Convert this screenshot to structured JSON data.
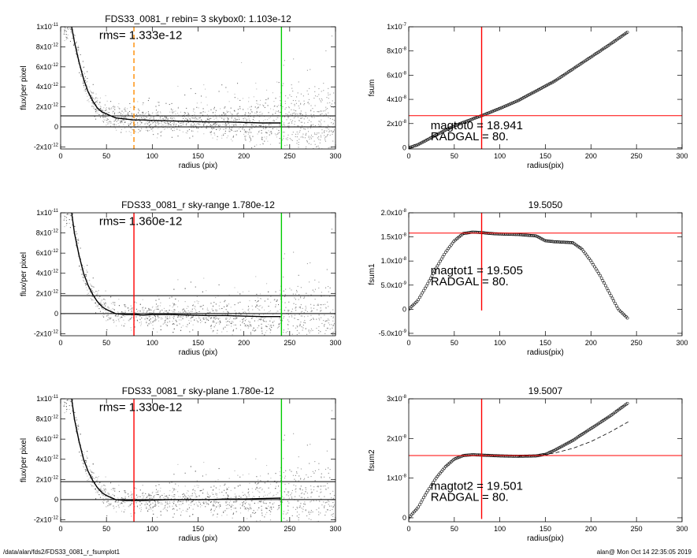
{
  "footer": {
    "left": "/data/alan/fds2/FDS33_0081_r_fsumplot1",
    "right": "alan@  Mon Oct 14 22:35:05 2019"
  },
  "chart_data": [
    {
      "type": "scatter",
      "title": "FDS33_0081_r rebin= 3    skybox0:  1.103e-12",
      "annotations": [
        "rms= 1.333e-12"
      ],
      "xlabel": "radius (pix)",
      "ylabel": "flux/per pixel",
      "xlim": [
        0,
        300
      ],
      "ylim": [
        -2.2e-12,
        1e-11
      ],
      "xticks": [
        "0",
        "50",
        "100",
        "150",
        "200",
        "250",
        "300"
      ],
      "yticks": [
        "-2x10^-12",
        "0",
        "2x10^-12",
        "4x10^-12",
        "6x10^-12",
        "8x10^-12",
        "1x10^-11"
      ],
      "hlines": [
        1.103e-12,
        0
      ],
      "vlines": [
        {
          "x": 80,
          "color": "#ff8c00",
          "style": "dashed"
        },
        {
          "x": 241,
          "color": "#00cc00",
          "style": "solid"
        }
      ],
      "profile": {
        "x": [
          12,
          15,
          20,
          25,
          30,
          35,
          40,
          45,
          50,
          55,
          60,
          70,
          80,
          90,
          100,
          120,
          140,
          160,
          180,
          200,
          220,
          240
        ],
        "y": [
          1e-11,
          8.5e-12,
          6.5e-12,
          4.8e-12,
          3.5e-12,
          2.6e-12,
          1.9e-12,
          1.5e-12,
          1.3e-12,
          1.1e-12,
          9e-13,
          8e-13,
          7e-13,
          7e-13,
          6.5e-13,
          6e-13,
          5.5e-13,
          5e-13,
          5e-13,
          4.5e-13,
          4e-13,
          4e-13
        ]
      }
    },
    {
      "type": "line",
      "title": "",
      "annotations": [
        "magtot0 =  18.941",
        "RADGAL =     80."
      ],
      "xlabel": "radius(pix)",
      "ylabel": "fsum",
      "xlim": [
        0,
        300
      ],
      "ylim": [
        -1e-09,
        1e-07
      ],
      "xticks": [
        "0",
        "50",
        "100",
        "150",
        "200",
        "250",
        "300"
      ],
      "yticks": [
        "0",
        "2x10^-8",
        "4x10^-8",
        "6x10^-8",
        "8x10^-8",
        "1x10^-7"
      ],
      "hlines": [
        2.65e-08
      ],
      "vlines": [
        {
          "x": 80,
          "color": "#ff0000",
          "style": "solid"
        }
      ],
      "series": [
        {
          "x": [
            0,
            10,
            20,
            30,
            40,
            50,
            60,
            80,
            100,
            120,
            140,
            160,
            180,
            200,
            220,
            241
          ],
          "y": [
            0,
            2.5e-09,
            6.5e-09,
            1.05e-08,
            1.45e-08,
            1.8e-08,
            2.1e-08,
            2.65e-08,
            3.25e-08,
            3.9e-08,
            4.7e-08,
            5.5e-08,
            6.5e-08,
            7.5e-08,
            8.5e-08,
            9.6e-08
          ]
        }
      ]
    },
    {
      "type": "scatter",
      "title": "FDS33_0081_r sky-range  1.780e-12",
      "annotations": [
        "rms= 1.360e-12"
      ],
      "xlabel": "radius (pix)",
      "ylabel": "flux/per pixel",
      "xlim": [
        0,
        300
      ],
      "ylim": [
        -2.2e-12,
        1e-11
      ],
      "xticks": [
        "0",
        "50",
        "100",
        "150",
        "200",
        "250",
        "300"
      ],
      "yticks": [
        "-2x10^-12",
        "0",
        "2x10^-12",
        "4x10^-12",
        "6x10^-12",
        "8x10^-12",
        "1x10^-11"
      ],
      "hlines": [
        1.78e-12,
        0
      ],
      "vlines": [
        {
          "x": 80,
          "color": "#ff0000",
          "style": "solid"
        },
        {
          "x": 241,
          "color": "#00cc00",
          "style": "solid"
        }
      ],
      "profile": {
        "x": [
          12,
          15,
          20,
          25,
          30,
          35,
          40,
          45,
          50,
          55,
          60,
          70,
          80,
          90,
          100,
          120,
          140,
          160,
          180,
          200,
          220,
          240
        ],
        "y": [
          1e-11,
          8e-12,
          5.8e-12,
          4e-12,
          2.8e-12,
          1.9e-12,
          1.2e-12,
          7e-13,
          4e-13,
          2e-13,
          0,
          -1e-13,
          -1e-13,
          -1.5e-13,
          -1e-13,
          -1e-13,
          -1.5e-13,
          -2e-13,
          -2e-13,
          -2.5e-13,
          -3e-13,
          -3e-13
        ]
      }
    },
    {
      "type": "line",
      "title": "19.5050",
      "annotations": [
        "magtot1 =  19.505",
        "RADGAL =     80."
      ],
      "xlabel": "radius(pix)",
      "ylabel": "fsum1",
      "xlim": [
        0,
        300
      ],
      "ylim": [
        -5.5e-09,
        2e-08
      ],
      "xticks": [
        "0",
        "50",
        "100",
        "150",
        "200",
        "250",
        "300"
      ],
      "yticks": [
        "-5.0x10^-9",
        "0",
        "5.0x10^-9",
        "1.0x10^-8",
        "1.5x10^-8",
        "2.0x10^-8"
      ],
      "hlines": [
        1.58e-08
      ],
      "vlines": [
        {
          "x": 80,
          "color": "#ff0000",
          "style": "solid"
        }
      ],
      "series": [
        {
          "x": [
            0,
            10,
            20,
            30,
            40,
            50,
            60,
            70,
            80,
            90,
            100,
            120,
            140,
            150,
            160,
            180,
            190,
            200,
            210,
            220,
            230,
            241
          ],
          "y": [
            0,
            1.8e-09,
            5e-09,
            8.5e-09,
            1.17e-08,
            1.42e-08,
            1.57e-08,
            1.6e-08,
            1.59e-08,
            1.57e-08,
            1.56e-08,
            1.55e-08,
            1.52e-08,
            1.42e-08,
            1.4e-08,
            1.38e-08,
            1.25e-08,
            1e-08,
            7e-09,
            3.5e-09,
            0,
            -2e-09
          ]
        }
      ]
    },
    {
      "type": "scatter",
      "title": "FDS33_0081_r sky-plane  1.780e-12",
      "annotations": [
        "rms= 1.330e-12"
      ],
      "xlabel": "radius (pix)",
      "ylabel": "flux/per pixel",
      "xlim": [
        0,
        300
      ],
      "ylim": [
        -2.2e-12,
        1e-11
      ],
      "xticks": [
        "0",
        "50",
        "100",
        "150",
        "200",
        "250",
        "300"
      ],
      "yticks": [
        "-2x10^-12",
        "0",
        "2x10^-12",
        "4x10^-12",
        "6x10^-12",
        "8x10^-12",
        "1x10^-11"
      ],
      "hlines": [
        1.78e-12,
        0
      ],
      "vlines": [
        {
          "x": 80,
          "color": "#ff0000",
          "style": "solid"
        },
        {
          "x": 241,
          "color": "#00cc00",
          "style": "solid"
        }
      ],
      "profile": {
        "x": [
          12,
          15,
          20,
          25,
          30,
          35,
          40,
          45,
          50,
          55,
          60,
          70,
          80,
          90,
          100,
          120,
          140,
          160,
          180,
          200,
          220,
          240
        ],
        "y": [
          1e-11,
          8e-12,
          5.8e-12,
          4e-12,
          2.8e-12,
          1.9e-12,
          1.2e-12,
          7e-13,
          4e-13,
          2e-13,
          0,
          -1e-13,
          -1e-13,
          -1e-13,
          -5e-14,
          0,
          0,
          0,
          5e-14,
          5e-14,
          1e-13,
          1.5e-13
        ]
      }
    },
    {
      "type": "line",
      "title": "19.5007",
      "annotations": [
        "magtot2 =  19.501",
        "RADGAL =     80."
      ],
      "xlabel": "radius(pix)",
      "ylabel": "fsum2",
      "xlim": [
        0,
        300
      ],
      "ylim": [
        -1e-09,
        3e-08
      ],
      "xticks": [
        "0",
        "50",
        "100",
        "150",
        "200",
        "250",
        "300"
      ],
      "yticks": [
        "0",
        "1x10^-8",
        "2x10^-8",
        "3x10^-8"
      ],
      "hlines": [
        1.57e-08
      ],
      "vlines": [
        {
          "x": 80,
          "color": "#ff0000",
          "style": "solid"
        }
      ],
      "series": [
        {
          "x": [
            0,
            10,
            20,
            30,
            40,
            50,
            60,
            70,
            80,
            100,
            120,
            140,
            150,
            160,
            180,
            200,
            220,
            241
          ],
          "y": [
            0,
            2.5e-09,
            6.5e-09,
            1e-08,
            1.28e-08,
            1.48e-08,
            1.57e-08,
            1.59e-08,
            1.58e-08,
            1.56e-08,
            1.55e-08,
            1.56e-08,
            1.6e-08,
            1.7e-08,
            1.95e-08,
            2.25e-08,
            2.55e-08,
            2.9e-08
          ]
        },
        {
          "x": [
            120,
            140,
            160,
            180,
            200,
            220,
            241
          ],
          "y": [
            1.55e-08,
            1.57e-08,
            1.63e-08,
            1.75e-08,
            1.92e-08,
            2.15e-08,
            2.42e-08
          ],
          "style": "dashed"
        }
      ]
    }
  ]
}
